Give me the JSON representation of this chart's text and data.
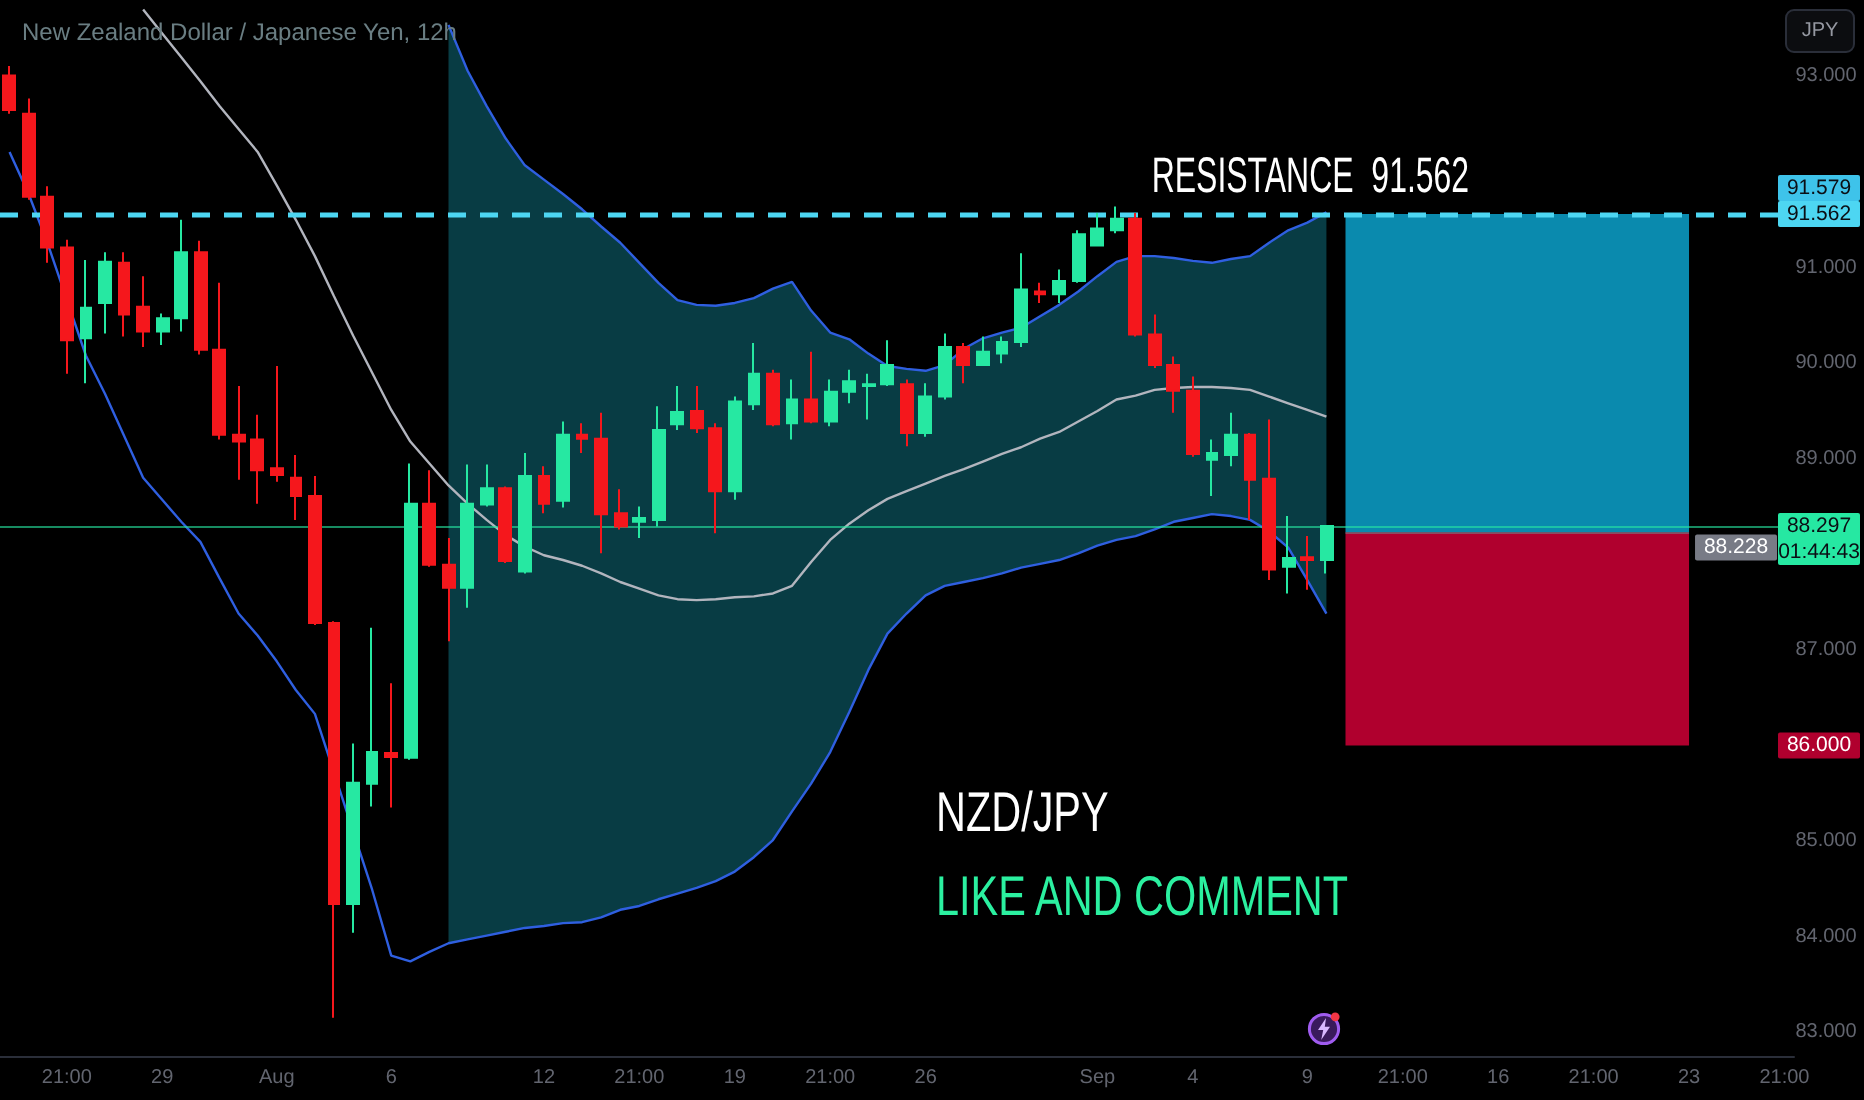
{
  "chart_data": {
    "type": "candlestick",
    "title": "New Zealand Dollar / Japanese Yen, 12h",
    "ylabel": "JPY",
    "categories": [
      null,
      null,
      null,
      "21:00",
      null,
      null,
      null,
      null,
      "29",
      null,
      null,
      null,
      null,
      null,
      "Aug",
      null,
      null,
      null,
      null,
      null,
      "6",
      null,
      null,
      null,
      null,
      null,
      null,
      null,
      "12",
      null,
      null,
      null,
      null,
      "21:00",
      null,
      null,
      null,
      null,
      "19",
      null,
      null,
      null,
      null,
      "21:00",
      null,
      null,
      null,
      null,
      "26",
      null,
      null,
      null,
      null,
      null,
      null,
      null,
      null,
      "Sep",
      null,
      null,
      null,
      null,
      "4",
      null,
      null,
      null,
      null,
      null,
      "9",
      null,
      null,
      null,
      null,
      "21:00",
      null,
      null,
      null,
      null,
      "16",
      null,
      null,
      null,
      null,
      "21:00",
      null,
      null,
      null,
      null,
      "23",
      null,
      null,
      null,
      null,
      "21:00"
    ],
    "ohlc": [
      [
        93.01,
        93.11,
        92.61,
        92.65
      ],
      [
        92.61,
        92.77,
        91.71,
        91.74
      ],
      [
        91.74,
        91.85,
        91.05,
        91.21
      ],
      [
        91.21,
        91.29,
        89.89,
        90.24
      ],
      [
        90.26,
        91.08,
        89.79,
        90.58
      ],
      [
        90.63,
        91.16,
        90.31,
        91.06
      ],
      [
        91.05,
        91.16,
        90.28,
        90.51
      ],
      [
        90.59,
        90.91,
        90.17,
        90.33
      ],
      [
        90.33,
        90.52,
        90.19,
        90.47
      ],
      [
        90.47,
        91.5,
        90.33,
        91.16
      ],
      [
        91.16,
        91.28,
        90.09,
        90.14
      ],
      [
        90.14,
        90.84,
        89.2,
        89.25
      ],
      [
        89.25,
        89.76,
        88.78,
        89.18
      ],
      [
        89.2,
        89.46,
        88.53,
        88.88
      ],
      [
        88.9,
        89.97,
        88.76,
        88.83
      ],
      [
        88.8,
        89.04,
        88.36,
        88.61
      ],
      [
        88.61,
        88.82,
        87.26,
        87.28
      ],
      [
        87.28,
        87.3,
        83.15,
        84.34
      ],
      [
        84.34,
        86.02,
        84.04,
        85.61
      ],
      [
        85.6,
        87.23,
        85.36,
        85.93
      ],
      [
        85.92,
        86.65,
        85.35,
        85.88
      ],
      [
        85.87,
        88.95,
        85.85,
        88.53
      ],
      [
        88.53,
        88.88,
        87.87,
        87.89
      ],
      [
        87.89,
        88.17,
        87.09,
        87.65
      ],
      [
        87.65,
        88.94,
        87.44,
        88.53
      ],
      [
        88.52,
        88.94,
        88.5,
        88.69
      ],
      [
        88.69,
        88.71,
        87.91,
        87.93
      ],
      [
        87.82,
        89.06,
        87.8,
        88.82
      ],
      [
        88.82,
        88.92,
        88.43,
        88.53
      ],
      [
        88.56,
        89.39,
        88.49,
        89.25
      ],
      [
        89.25,
        89.37,
        89.06,
        89.21
      ],
      [
        89.21,
        89.48,
        88.01,
        88.42
      ],
      [
        88.43,
        88.68,
        88.26,
        88.29
      ],
      [
        88.34,
        88.5,
        88.17,
        88.38
      ],
      [
        88.36,
        89.55,
        88.29,
        89.3
      ],
      [
        89.36,
        89.76,
        89.3,
        89.49
      ],
      [
        89.5,
        89.76,
        89.27,
        89.32
      ],
      [
        89.32,
        89.37,
        88.22,
        88.66
      ],
      [
        88.66,
        89.65,
        88.57,
        89.6
      ],
      [
        89.57,
        90.21,
        89.51,
        89.89
      ],
      [
        89.89,
        89.93,
        89.34,
        89.36
      ],
      [
        89.37,
        89.83,
        89.2,
        89.62
      ],
      [
        89.62,
        90.12,
        89.37,
        89.39
      ],
      [
        89.39,
        89.83,
        89.34,
        89.7
      ],
      [
        89.7,
        89.93,
        89.58,
        89.81
      ],
      [
        89.76,
        89.89,
        89.41,
        89.78
      ],
      [
        89.78,
        90.24,
        89.76,
        89.98
      ],
      [
        89.78,
        89.83,
        89.13,
        89.27
      ],
      [
        89.27,
        89.79,
        89.23,
        89.65
      ],
      [
        89.65,
        90.31,
        89.62,
        90.17
      ],
      [
        90.17,
        90.21,
        89.79,
        89.98
      ],
      [
        89.98,
        90.28,
        89.97,
        90.12
      ],
      [
        90.1,
        90.28,
        90.0,
        90.22
      ],
      [
        90.22,
        91.15,
        90.17,
        90.77
      ],
      [
        90.75,
        90.84,
        90.63,
        90.72
      ],
      [
        90.72,
        90.98,
        90.63,
        90.86
      ],
      [
        90.86,
        91.39,
        90.84,
        91.35
      ],
      [
        91.23,
        91.57,
        91.22,
        91.41
      ],
      [
        91.39,
        91.64,
        91.36,
        91.51
      ],
      [
        91.51,
        91.57,
        90.28,
        90.3
      ],
      [
        90.3,
        90.51,
        89.95,
        89.98
      ],
      [
        89.98,
        90.07,
        89.48,
        89.71
      ],
      [
        89.71,
        89.86,
        89.02,
        89.05
      ],
      [
        88.99,
        89.2,
        88.61,
        89.06
      ],
      [
        89.04,
        89.48,
        88.92,
        89.25
      ],
      [
        89.25,
        89.27,
        88.36,
        88.78
      ],
      [
        88.79,
        89.41,
        87.73,
        87.84
      ],
      [
        87.87,
        88.4,
        87.59,
        87.96
      ],
      [
        87.97,
        88.19,
        87.63,
        87.94
      ],
      [
        87.94,
        88.3,
        87.8,
        88.297
      ],
      null,
      null,
      null,
      null,
      null,
      null,
      null,
      null,
      null,
      null,
      null,
      null,
      null,
      null,
      null,
      null,
      null,
      null,
      null,
      null,
      null,
      null,
      null,
      null
    ],
    "series": [
      {
        "type": "line",
        "color": "#b2b5be",
        "values": [
          null,
          null,
          null,
          null,
          null,
          null,
          null,
          93.7,
          93.45,
          93.2,
          92.95,
          92.69,
          92.45,
          92.21,
          91.86,
          91.5,
          91.12,
          90.7,
          90.29,
          89.9,
          89.51,
          89.18,
          88.95,
          88.72,
          88.53,
          88.36,
          88.2,
          88.08,
          87.99,
          87.94,
          87.88,
          87.8,
          87.71,
          87.64,
          87.57,
          87.53,
          87.52,
          87.53,
          87.55,
          87.56,
          87.59,
          87.67,
          87.92,
          88.15,
          88.32,
          88.46,
          88.58,
          88.66,
          88.74,
          88.82,
          88.89,
          88.97,
          89.05,
          89.12,
          89.21,
          89.28,
          89.39,
          89.5,
          89.62,
          89.66,
          89.72,
          89.74,
          89.75,
          89.75,
          89.74,
          89.72,
          89.65,
          89.58,
          89.51,
          89.44,
          null,
          null,
          null,
          null,
          null,
          null,
          null,
          null,
          null,
          null,
          null,
          null,
          null,
          null,
          null,
          null,
          null,
          null,
          null,
          null,
          null,
          null,
          null,
          null
        ],
        "lower": [
          null,
          null,
          null,
          null,
          null,
          null,
          null,
          null,
          null,
          null,
          null,
          null,
          null,
          null,
          null,
          null,
          null,
          null,
          null,
          null,
          null,
          null,
          null,
          83.93,
          83.97,
          84.01,
          84.05,
          84.09,
          84.11,
          84.14,
          84.15,
          84.2,
          84.28,
          84.32,
          84.39,
          84.45,
          84.51,
          84.58,
          84.68,
          84.83,
          85.01,
          85.31,
          85.6,
          85.93,
          86.35,
          86.79,
          87.17,
          87.38,
          87.57,
          87.67,
          87.71,
          87.75,
          87.8,
          87.86,
          87.9,
          87.94,
          88.01,
          88.09,
          88.15,
          88.19,
          88.26,
          88.34,
          88.38,
          88.42,
          88.4,
          88.36,
          88.24,
          88.07,
          87.73,
          87.38,
          null,
          null,
          null,
          null,
          null,
          null,
          null,
          null,
          null,
          null,
          null,
          null,
          null,
          null,
          null,
          null,
          null,
          null,
          null,
          null,
          null,
          null,
          null,
          null
        ],
        "upper": [
          null,
          null,
          null,
          null,
          null,
          null,
          null,
          null,
          null,
          null,
          null,
          null,
          null,
          null,
          null,
          null,
          null,
          null,
          null,
          null,
          null,
          null,
          null,
          93.54,
          93.06,
          92.69,
          92.35,
          92.07,
          91.92,
          91.77,
          91.61,
          91.43,
          91.26,
          91.05,
          90.84,
          90.66,
          90.61,
          90.6,
          90.63,
          90.68,
          90.78,
          90.85,
          90.55,
          90.32,
          90.25,
          90.1,
          89.97,
          89.94,
          89.92,
          89.98,
          90.15,
          90.26,
          90.32,
          90.37,
          90.49,
          90.61,
          90.75,
          90.91,
          91.06,
          91.12,
          91.12,
          91.1,
          91.07,
          91.05,
          91.09,
          91.12,
          91.26,
          91.39,
          91.47,
          91.579,
          null,
          null,
          null,
          null,
          null,
          null,
          null,
          null,
          null,
          null,
          null,
          null,
          null,
          null,
          null,
          null,
          null,
          null,
          null,
          null,
          null,
          null,
          null,
          null
        ]
      },
      {
        "type": "line",
        "color": "#2f5fe0",
        "values": [
          92.21,
          91.77,
          91.25,
          null,
          90.08,
          89.68,
          89.24,
          88.8,
          88.57,
          88.34,
          88.13,
          87.75,
          87.38,
          87.15,
          86.88,
          86.58,
          86.33,
          null,
          null,
          84.49,
          83.8,
          83.74,
          83.84,
          83.93,
          83.97,
          84.01,
          84.05,
          84.09,
          84.11,
          84.14,
          84.15,
          84.2,
          84.28,
          84.32,
          84.39,
          84.45,
          84.51,
          84.58,
          84.68,
          84.83,
          85.01,
          85.31,
          85.6,
          85.93,
          86.35,
          86.79,
          87.17,
          87.38,
          87.57,
          87.67,
          87.71,
          87.75,
          87.8,
          87.86,
          87.9,
          87.94,
          88.01,
          88.09,
          88.15,
          88.19,
          88.26,
          88.34,
          88.38,
          88.42,
          88.4,
          88.36,
          88.24,
          88.07,
          87.73,
          87.38,
          null,
          null,
          null,
          null,
          null,
          null,
          null,
          null,
          null,
          null,
          null,
          null,
          null,
          null,
          null,
          null,
          null,
          null,
          null,
          null,
          null,
          null,
          null,
          null
        ]
      },
      {
        "type": "line",
        "color": "#2f5fe0",
        "values": [
          null,
          null,
          null,
          null,
          null,
          null,
          null,
          null,
          null,
          null,
          null,
          null,
          null,
          null,
          null,
          null,
          null,
          null,
          null,
          null,
          null,
          null,
          null,
          93.54,
          93.06,
          92.69,
          92.35,
          92.07,
          91.92,
          91.77,
          91.61,
          91.43,
          91.26,
          91.05,
          90.84,
          90.66,
          90.61,
          90.6,
          90.63,
          90.68,
          90.78,
          90.85,
          90.55,
          90.32,
          90.25,
          90.1,
          89.97,
          89.94,
          89.92,
          89.98,
          90.15,
          90.26,
          90.32,
          90.37,
          90.49,
          90.61,
          90.75,
          90.91,
          91.06,
          91.12,
          91.12,
          91.1,
          91.07,
          91.05,
          91.09,
          91.12,
          91.26,
          91.39,
          91.47,
          91.579,
          null,
          null,
          null,
          null,
          null,
          null,
          null,
          null,
          null,
          null,
          null,
          null,
          null,
          null,
          null,
          null,
          null,
          null,
          null,
          null,
          null,
          null,
          null,
          null
        ]
      }
    ],
    "ylim": [
      82.75,
      93.8
    ],
    "yticks": [
      {
        "value": 83,
        "label": "83.000"
      },
      {
        "value": 84,
        "label": "84.000"
      },
      {
        "value": 85,
        "label": "85.000"
      },
      {
        "value": 86,
        "label": "86.000"
      },
      {
        "value": 87,
        "label": "87.000"
      },
      88.297,
      {
        "value": 89,
        "label": "89.000"
      },
      {
        "value": 90,
        "label": "90.000"
      },
      {
        "value": 91,
        "label": "91.000"
      },
      91.562,
      {
        "value": 93,
        "label": "93.000"
      }
    ],
    "ref_lines": [
      {
        "axis": "y",
        "value": 91.562,
        "label": "RESISTANCE  91.562",
        "color": "#4dd6f2",
        "line_style": "dashed"
      },
      {
        "axis": "y",
        "value": 88.297,
        "color": "#26e8a2",
        "line_style": "solid"
      },
      {
        "axis": "y",
        "value": 88.228,
        "label": "88.228",
        "color": "#787b86",
        "line_style": "solid"
      }
    ],
    "bands": [
      {
        "axis": "y",
        "from": 88.228,
        "to": 91.562,
        "color": "#0a8aae"
      },
      {
        "axis": "y",
        "from": 86,
        "to": 88.228,
        "color": "#b0002e"
      }
    ],
    "annotations": [
      "NZD/JPY",
      "LIKE AND COMMENT",
      "01:44:43",
      {
        "text": "91.579",
        "y": 91.579
      }
    ]
  }
}
